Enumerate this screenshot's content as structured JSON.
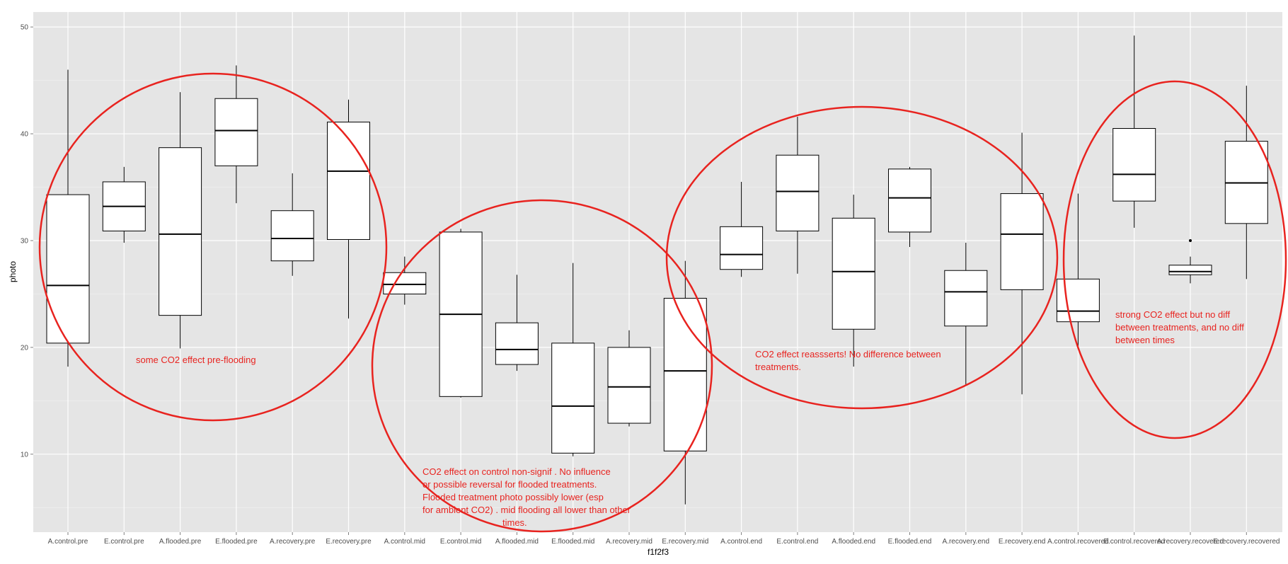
{
  "chart_data": {
    "type": "box",
    "xlabel": "f1f2f3",
    "ylabel": "photo",
    "ylim": [
      2.7,
      51.4
    ],
    "yticks": [
      10,
      20,
      30,
      40,
      50
    ],
    "grid": true,
    "categories": [
      "A.control.pre",
      "E.control.pre",
      "A.flooded.pre",
      "E.flooded.pre",
      "A.recovery.pre",
      "E.recovery.pre",
      "A.control.mid",
      "E.control.mid",
      "A.flooded.mid",
      "E.flooded.mid",
      "A.recovery.mid",
      "E.recovery.mid",
      "A.control.end",
      "E.control.end",
      "A.flooded.end",
      "E.flooded.end",
      "A.recovery.end",
      "E.recovery.end",
      "A.control.recovered",
      "E.control.recovered",
      "A.recovery.recovered",
      "E.recovery.recovered"
    ],
    "boxes": [
      {
        "min": 18.2,
        "q1": 20.4,
        "median": 25.8,
        "q3": 34.3,
        "max": 46.0
      },
      {
        "min": 29.8,
        "q1": 30.9,
        "median": 33.2,
        "q3": 35.5,
        "max": 36.9
      },
      {
        "min": 19.9,
        "q1": 23.0,
        "median": 30.6,
        "q3": 38.7,
        "max": 43.9
      },
      {
        "min": 33.5,
        "q1": 37.0,
        "median": 40.3,
        "q3": 43.3,
        "max": 46.4
      },
      {
        "min": 26.7,
        "q1": 28.1,
        "median": 30.2,
        "q3": 32.8,
        "max": 36.3
      },
      {
        "min": 22.7,
        "q1": 30.1,
        "median": 36.5,
        "q3": 41.1,
        "max": 43.2
      },
      {
        "min": 24.0,
        "q1": 25.0,
        "median": 25.9,
        "q3": 27.0,
        "max": 28.5
      },
      {
        "min": 15.3,
        "q1": 15.4,
        "median": 23.1,
        "q3": 30.8,
        "max": 31.1
      },
      {
        "min": 17.8,
        "q1": 18.4,
        "median": 19.8,
        "q3": 22.3,
        "max": 26.8
      },
      {
        "min": 9.8,
        "q1": 10.1,
        "median": 14.5,
        "q3": 20.4,
        "max": 27.9
      },
      {
        "min": 12.6,
        "q1": 12.9,
        "median": 16.3,
        "q3": 20.0,
        "max": 21.6
      },
      {
        "min": 5.3,
        "q1": 10.3,
        "median": 17.8,
        "q3": 24.6,
        "max": 28.1
      },
      {
        "min": 26.6,
        "q1": 27.3,
        "median": 28.7,
        "q3": 31.3,
        "max": 35.5
      },
      {
        "min": 26.9,
        "q1": 30.9,
        "median": 34.6,
        "q3": 38.0,
        "max": 41.6
      },
      {
        "min": 18.2,
        "q1": 21.7,
        "median": 27.1,
        "q3": 32.1,
        "max": 34.3
      },
      {
        "min": 29.4,
        "q1": 30.8,
        "median": 34.0,
        "q3": 36.7,
        "max": 36.9
      },
      {
        "min": 16.4,
        "q1": 22.0,
        "median": 25.2,
        "q3": 27.2,
        "max": 29.8
      },
      {
        "min": 15.6,
        "q1": 25.4,
        "median": 30.6,
        "q3": 34.4,
        "max": 40.1
      },
      {
        "min": 20.0,
        "q1": 22.4,
        "median": 23.4,
        "q3": 26.4,
        "max": 34.4
      },
      {
        "min": 31.2,
        "q1": 33.7,
        "median": 36.2,
        "q3": 40.5,
        "max": 49.2
      },
      {
        "min": 26.0,
        "q1": 26.8,
        "median": 27.1,
        "q3": 27.7,
        "max": 28.5,
        "outliers": [
          30.0
        ]
      },
      {
        "min": 26.4,
        "q1": 31.6,
        "median": 35.4,
        "q3": 39.3,
        "max": 44.5
      }
    ],
    "annotations": [
      {
        "text": "some CO2 effect pre-flooding"
      },
      {
        "lines": [
          "CO2 effect on control non-signif .  No influence",
          "or possible reversal for flooded treatments.",
          "Flooded treatment photo possibly lower (esp",
          "for ambient CO2)   . mid flooding all lower than other",
          "times."
        ]
      },
      {
        "lines": [
          "CO2 effect reassserts!  No difference between",
          "treatments."
        ]
      },
      {
        "lines": [
          "strong CO2 effect but no diff",
          "between treatments, and no diff",
          "between times"
        ]
      }
    ],
    "annotation_color": "#e8231f",
    "panel_background": "#e5e5e5",
    "grid_color": "#ffffff"
  }
}
